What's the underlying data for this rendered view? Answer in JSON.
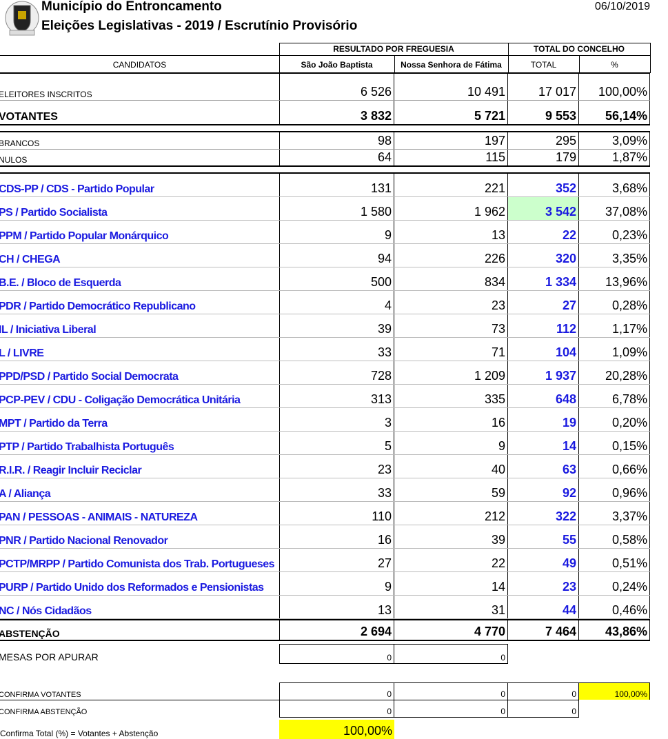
{
  "header": {
    "title": "Município do Entroncamento",
    "subtitle": "Eleições Legislativas - 2019 / Escrutínio Provisório",
    "date": "06/10/2019"
  },
  "table": {
    "group_headers": [
      "RESULTADO POR FREGUESIA",
      "TOTAL DO CONCELHO"
    ],
    "columns": [
      "CANDIDATOS",
      "São João Baptista",
      "Nossa Senhora de Fátima",
      "TOTAL",
      "%"
    ],
    "summary": [
      {
        "label": "ELEITORES INSCRITOS",
        "values": [
          "6 526",
          "10 491",
          "17 017",
          "100,00%"
        ]
      },
      {
        "label": "VOTANTES",
        "values": [
          "3 832",
          "5 721",
          "9 553",
          "56,14%"
        ]
      }
    ],
    "blank_null": [
      {
        "label": "BRANCOS",
        "values": [
          "98",
          "197",
          "295",
          "3,09%"
        ]
      },
      {
        "label": "NULOS",
        "values": [
          "64",
          "115",
          "179",
          "1,87%"
        ]
      }
    ],
    "parties": [
      {
        "label": "CDS-PP / CDS - Partido Popular",
        "values": [
          "131",
          "221",
          "352",
          "3,68%"
        ]
      },
      {
        "label": "PS / Partido Socialista",
        "values": [
          "1 580",
          "1 962",
          "3 542",
          "37,08%"
        ]
      },
      {
        "label": "PPM / Partido Popular Monárquico",
        "values": [
          "9",
          "13",
          "22",
          "0,23%"
        ]
      },
      {
        "label": "CH / CHEGA",
        "values": [
          "94",
          "226",
          "320",
          "3,35%"
        ]
      },
      {
        "label": "B.E. / Bloco de Esquerda",
        "values": [
          "500",
          "834",
          "1 334",
          "13,96%"
        ]
      },
      {
        "label": "PDR / Partido Democrático Republicano",
        "values": [
          "4",
          "23",
          "27",
          "0,28%"
        ]
      },
      {
        "label": "IL / Iniciativa Liberal",
        "values": [
          "39",
          "73",
          "112",
          "1,17%"
        ]
      },
      {
        "label": "L / LIVRE",
        "values": [
          "33",
          "71",
          "104",
          "1,09%"
        ]
      },
      {
        "label": "PPD/PSD / Partido Social Democrata",
        "values": [
          "728",
          "1 209",
          "1 937",
          "20,28%"
        ]
      },
      {
        "label": "PCP-PEV / CDU - Coligação Democrática Unitária",
        "values": [
          "313",
          "335",
          "648",
          "6,78%"
        ]
      },
      {
        "label": "MPT / Partido da Terra",
        "values": [
          "3",
          "16",
          "19",
          "0,20%"
        ]
      },
      {
        "label": "PTP / Partido Trabalhista Português",
        "values": [
          "5",
          "9",
          "14",
          "0,15%"
        ]
      },
      {
        "label": "R.I.R. / Reagir Incluir Reciclar",
        "values": [
          "23",
          "40",
          "63",
          "0,66%"
        ]
      },
      {
        "label": "A / Aliança",
        "values": [
          "33",
          "59",
          "92",
          "0,96%"
        ]
      },
      {
        "label": "PAN / PESSOAS - ANIMAIS - NATUREZA",
        "values": [
          "110",
          "212",
          "322",
          "3,37%"
        ]
      },
      {
        "label": "PNR / Partido Nacional Renovador",
        "values": [
          "16",
          "39",
          "55",
          "0,58%"
        ]
      },
      {
        "label": "PCTP/MRPP / Partido Comunista dos Trab. Portugueses",
        "values": [
          "27",
          "22",
          "49",
          "0,51%"
        ]
      },
      {
        "label": "PURP / Partido Unido dos Reformados e Pensionistas",
        "values": [
          "9",
          "14",
          "23",
          "0,24%"
        ]
      },
      {
        "label": "NC / Nós Cidadãos",
        "values": [
          "13",
          "31",
          "44",
          "0,46%"
        ]
      }
    ],
    "abstention": {
      "label": "ABSTENÇÃO",
      "values": [
        "2 694",
        "4 770",
        "7 464",
        "43,86%"
      ]
    },
    "pending": {
      "label": "MESAS POR APURAR",
      "values": [
        "0",
        "0"
      ]
    },
    "checks": [
      {
        "label": "CONFIRMA VOTANTES",
        "values": [
          "0",
          "0",
          "0",
          "100,00%"
        ]
      },
      {
        "label": "CONFIRMA ABSTENÇÃO",
        "values": [
          "0",
          "0",
          "0"
        ]
      }
    ],
    "confirm_total": {
      "label": "Confirma Total (%) = Votantes + Abstenção",
      "value": "100,00%"
    }
  }
}
